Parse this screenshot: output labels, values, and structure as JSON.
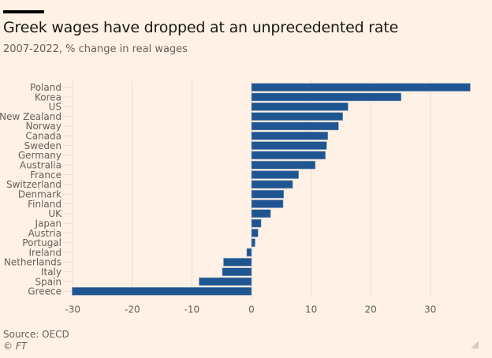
{
  "header": {
    "title": "Greek wages have dropped at an unprecedented rate",
    "subtitle": "2007-2022, % change in real wages"
  },
  "footer": {
    "source": "Source: OECD",
    "copyright": "© FT"
  },
  "colors": {
    "background": "#FFF1E5",
    "bar": "#1F5591",
    "grid": "#E9DBCF",
    "text": "#33302E",
    "muted": "#66605C"
  },
  "chart_data": {
    "type": "bar",
    "orientation": "horizontal",
    "title": "Greek wages have dropped at an unprecedented rate",
    "subtitle": "2007-2022, % change in real wages",
    "xlabel": "",
    "ylabel": "",
    "xlim": [
      -30,
      37
    ],
    "xticks": [
      -30,
      -20,
      -10,
      0,
      10,
      20,
      30
    ],
    "grid": true,
    "legend": "none",
    "categories": [
      "Poland",
      "Korea",
      "US",
      "New Zealand",
      "Norway",
      "Canada",
      "Sweden",
      "Germany",
      "Australia",
      "France",
      "Switzerland",
      "Denmark",
      "Finland",
      "UK",
      "Japan",
      "Austria",
      "Portugal",
      "Ireland",
      "Netherlands",
      "Italy",
      "Spain",
      "Greece"
    ],
    "values": [
      36.7,
      25.1,
      16.2,
      15.3,
      14.6,
      12.8,
      12.6,
      12.4,
      10.7,
      7.9,
      6.9,
      5.4,
      5.3,
      3.2,
      1.6,
      1.1,
      0.6,
      -0.8,
      -4.7,
      -4.9,
      -8.8,
      -30.1
    ],
    "source": "Source: OECD"
  }
}
